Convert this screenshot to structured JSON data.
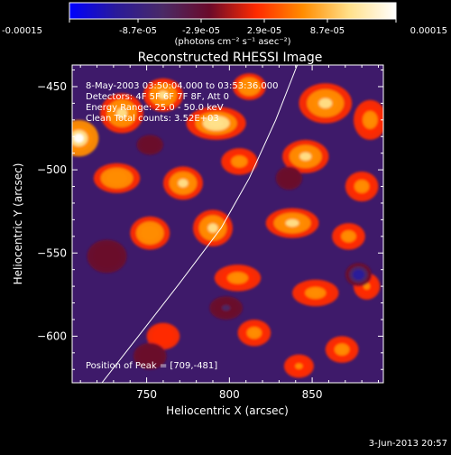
{
  "colorbar": {
    "tick_labels": [
      "-0.00015",
      "-8.7e-05",
      "-2.9e-05",
      "2.9e-05",
      "8.7e-05",
      "0.00015"
    ],
    "tick_values": [
      -0.00015,
      -8.7e-05,
      -2.9e-05,
      2.9e-05,
      8.7e-05,
      0.00015
    ],
    "min": -0.00015,
    "max": 0.00015,
    "units": "(photons cm⁻² s⁻¹ asec⁻²)",
    "colors": [
      "#0000ff",
      "#2a1a9a",
      "#4a2a66",
      "#6a0a2a",
      "#ff2a00",
      "#ff8c00",
      "#ffe08a",
      "#ffffff"
    ]
  },
  "chart_data": {
    "type": "heatmap",
    "title": "Reconstructed RHESSI Image",
    "xlabel": "Heliocentric X (arcsec)",
    "ylabel": "Heliocentric Y (arcsec)",
    "xlim": [
      705,
      893
    ],
    "ylim": [
      -628,
      -437
    ],
    "xticks": [
      750,
      800,
      850
    ],
    "xtick_labels": [
      "750",
      "800",
      "850"
    ],
    "yticks": [
      -450,
      -500,
      -550,
      -600
    ],
    "ytick_labels": [
      "−450",
      "−500",
      "−550",
      "−600"
    ],
    "annotations": [
      "8-May-2003 03:50:04.000 to 03:53:36.000",
      "Detectors: 4F 5F 6F 7F 8F, Att 0",
      "Energy Range: 25.0 - 50.0 keV",
      "Clean    Total counts: 3.52E+03"
    ],
    "peak_label": "Position of Peak = [709,-481]",
    "peak": [
      709,
      -481
    ],
    "limb_arc": [
      [
        723,
        -628
      ],
      [
        745,
        -600
      ],
      [
        770,
        -568
      ],
      [
        795,
        -535
      ],
      [
        812,
        -505
      ],
      [
        828,
        -470
      ],
      [
        841,
        -437
      ]
    ],
    "sources": [
      {
        "x": 709,
        "y": -481,
        "v": 0.00015,
        "sx": 12,
        "sy": 11
      },
      {
        "x": 735,
        "y": -466,
        "v": 0.0001,
        "sx": 13,
        "sy": 12
      },
      {
        "x": 760,
        "y": -455,
        "v": 9e-05,
        "sx": 12,
        "sy": 10
      },
      {
        "x": 792,
        "y": -472,
        "v": 0.00011,
        "sx": 18,
        "sy": 10
      },
      {
        "x": 812,
        "y": -450,
        "v": 8e-05,
        "sx": 10,
        "sy": 8
      },
      {
        "x": 858,
        "y": -460,
        "v": 0.0001,
        "sx": 16,
        "sy": 12
      },
      {
        "x": 885,
        "y": -470,
        "v": 7e-05,
        "sx": 10,
        "sy": 12
      },
      {
        "x": 732,
        "y": -505,
        "v": 8e-05,
        "sx": 14,
        "sy": 9
      },
      {
        "x": 772,
        "y": -508,
        "v": 0.0001,
        "sx": 12,
        "sy": 10
      },
      {
        "x": 806,
        "y": -495,
        "v": 6e-05,
        "sx": 11,
        "sy": 8
      },
      {
        "x": 846,
        "y": -492,
        "v": 9e-05,
        "sx": 14,
        "sy": 10
      },
      {
        "x": 880,
        "y": -510,
        "v": 6e-05,
        "sx": 10,
        "sy": 9
      },
      {
        "x": 752,
        "y": -538,
        "v": 8e-05,
        "sx": 12,
        "sy": 10
      },
      {
        "x": 790,
        "y": -535,
        "v": 0.0001,
        "sx": 12,
        "sy": 11
      },
      {
        "x": 838,
        "y": -532,
        "v": 9e-05,
        "sx": 16,
        "sy": 9
      },
      {
        "x": 872,
        "y": -540,
        "v": 6e-05,
        "sx": 10,
        "sy": 8
      },
      {
        "x": 805,
        "y": -565,
        "v": 7e-05,
        "sx": 14,
        "sy": 8
      },
      {
        "x": 852,
        "y": -574,
        "v": 6e-05,
        "sx": 14,
        "sy": 8
      },
      {
        "x": 883,
        "y": -570,
        "v": 5e-05,
        "sx": 8,
        "sy": 8
      },
      {
        "x": 815,
        "y": -598,
        "v": 6e-05,
        "sx": 10,
        "sy": 8
      },
      {
        "x": 868,
        "y": -608,
        "v": 6e-05,
        "sx": 10,
        "sy": 8
      },
      {
        "x": 842,
        "y": -618,
        "v": 5e-05,
        "sx": 9,
        "sy": 7
      },
      {
        "x": 760,
        "y": -600,
        "v": 4e-05,
        "sx": 10,
        "sy": 8
      },
      {
        "x": 878,
        "y": -563,
        "v": -0.00012,
        "sx": 8,
        "sy": 7
      },
      {
        "x": 798,
        "y": -583,
        "v": -5e-05,
        "sx": 10,
        "sy": 7
      },
      {
        "x": 726,
        "y": -552,
        "v": -4e-05,
        "sx": 12,
        "sy": 10
      },
      {
        "x": 752,
        "y": -612,
        "v": -4e-05,
        "sx": 10,
        "sy": 8
      },
      {
        "x": 836,
        "y": -505,
        "v": -3e-05,
        "sx": 8,
        "sy": 7
      },
      {
        "x": 752,
        "y": -485,
        "v": -3e-05,
        "sx": 8,
        "sy": 6
      }
    ]
  },
  "footer": {
    "timestamp": "3-Jun-2013 20:57"
  }
}
